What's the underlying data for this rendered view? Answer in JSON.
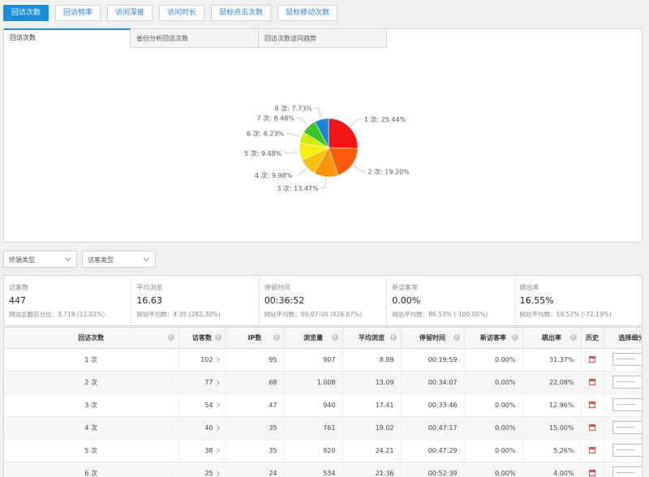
{
  "topbar": {
    "buttons": [
      {
        "label": "回访次数",
        "active": true
      },
      {
        "label": "回访频率",
        "active": false
      },
      {
        "label": "访问深度",
        "active": false
      },
      {
        "label": "访问时长",
        "active": false
      },
      {
        "label": "鼠标点击次数",
        "active": false
      },
      {
        "label": "鼠标移动次数",
        "active": false
      }
    ]
  },
  "tabs": [
    {
      "label": "回访次数",
      "active": true
    },
    {
      "label": "省份分析回访次数",
      "active": false
    },
    {
      "label": "回访次数访问趋势",
      "active": false
    }
  ],
  "chart_data": {
    "type": "pie",
    "categories": [
      "1 次",
      "2 次",
      "3 次",
      "4 次",
      "5 次",
      "6 次",
      "7 次",
      "8 次"
    ],
    "values": [
      25.44,
      19.2,
      13.47,
      9.98,
      9.48,
      6.23,
      8.48,
      7.73
    ],
    "labels": [
      "1 次: 25.44%",
      "2 次: 19.20%",
      "3 次: 13.47%",
      "4 次: 9.98%",
      "5 次: 9.48%",
      "6 次: 6.23%",
      "7 次: 8.48%",
      "8 次: 7.73%"
    ],
    "colors": [
      "#f21515",
      "#fb5c0e",
      "#f7960d",
      "#fcc20a",
      "#f6ee0b",
      "#d2ea10",
      "#3cc626",
      "#1a84d6"
    ]
  },
  "filters": {
    "terminal_type": "终端类型",
    "visitor_type": "访客类型"
  },
  "stats": [
    {
      "label": "访客数",
      "value": "447",
      "sub": "网站总翻百分比：3,718 (12.02%)"
    },
    {
      "label": "平均浏览",
      "value": "16.63",
      "sub": "网站平均数：4.35 (282.30%)"
    },
    {
      "label": "停留时间",
      "value": "00:36:52",
      "sub": "网站平均数：00:07:00 (426.67%)"
    },
    {
      "label": "新访客率",
      "value": "0.00%",
      "sub": "网站平均数：86.53% (-100.00%)"
    },
    {
      "label": "跳出率",
      "value": "16.55%",
      "sub": "网站平均数：59.52% (-72.19%)"
    }
  ],
  "table": {
    "headers": [
      "回访次数",
      "访客数",
      "IP数",
      "浏览量",
      "平均浏览",
      "停留时间",
      "新访客率",
      "跳出率",
      "历史",
      "选择细分"
    ],
    "select_placeholder": "---------",
    "rows": [
      {
        "visits": "1 次",
        "visitors": "102",
        "ip": "95",
        "pv": "907",
        "avg": "8.89",
        "stay": "00:19:59",
        "newrate": "0.00%",
        "bounce": "31.37%"
      },
      {
        "visits": "2 次",
        "visitors": "77",
        "ip": "68",
        "pv": "1,008",
        "avg": "13.09",
        "stay": "00:34:07",
        "newrate": "0.00%",
        "bounce": "22.08%"
      },
      {
        "visits": "3 次",
        "visitors": "54",
        "ip": "47",
        "pv": "940",
        "avg": "17.41",
        "stay": "00:33:46",
        "newrate": "0.00%",
        "bounce": "12.96%"
      },
      {
        "visits": "4 次",
        "visitors": "40",
        "ip": "35",
        "pv": "761",
        "avg": "19.02",
        "stay": "00:47:17",
        "newrate": "0.00%",
        "bounce": "15.00%"
      },
      {
        "visits": "5 次",
        "visitors": "38",
        "ip": "35",
        "pv": "920",
        "avg": "24.21",
        "stay": "00:47:29",
        "newrate": "0.00%",
        "bounce": "5.26%"
      },
      {
        "visits": "6 次",
        "visitors": "25",
        "ip": "24",
        "pv": "534",
        "avg": "21.36",
        "stay": "00:52:39",
        "newrate": "0.00%",
        "bounce": "4.00%"
      }
    ]
  }
}
